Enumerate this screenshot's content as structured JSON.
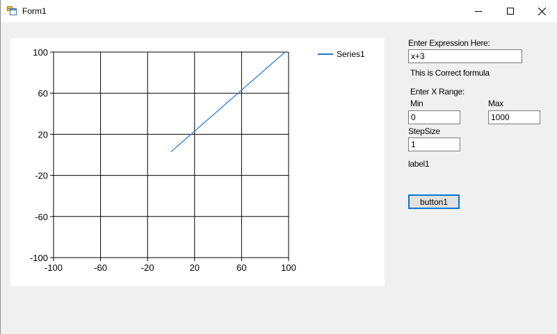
{
  "window": {
    "title": "Form1"
  },
  "chart": {
    "legend": {
      "label": "Series1"
    }
  },
  "chart_data": {
    "type": "line",
    "title": "",
    "xlabel": "",
    "ylabel": "",
    "xlim": [
      -100,
      100
    ],
    "ylim": [
      -100,
      100
    ],
    "x_ticks": [
      -100,
      -60,
      -20,
      20,
      60,
      100
    ],
    "y_ticks": [
      -100,
      -60,
      -20,
      20,
      60,
      100
    ],
    "grid": true,
    "legend_position": "top-right",
    "series": [
      {
        "name": "Series1",
        "color": "#1e78dc",
        "x": [
          0,
          97
        ],
        "y": [
          3,
          100
        ]
      }
    ]
  },
  "form": {
    "expression_label": "Enter Expression Here:",
    "expression_value": "x+3",
    "formula_status": "This is Correct formula",
    "x_range_label": "Enter X Range:",
    "min_label": "Min",
    "min_value": "0",
    "max_label": "Max",
    "max_value": "1000",
    "stepsize_label": "StepSize",
    "stepsize_value": "1",
    "label1": "label1",
    "button_label": "button1"
  },
  "colors": {
    "accent": "#0078d7",
    "series": "#1e78dc"
  }
}
